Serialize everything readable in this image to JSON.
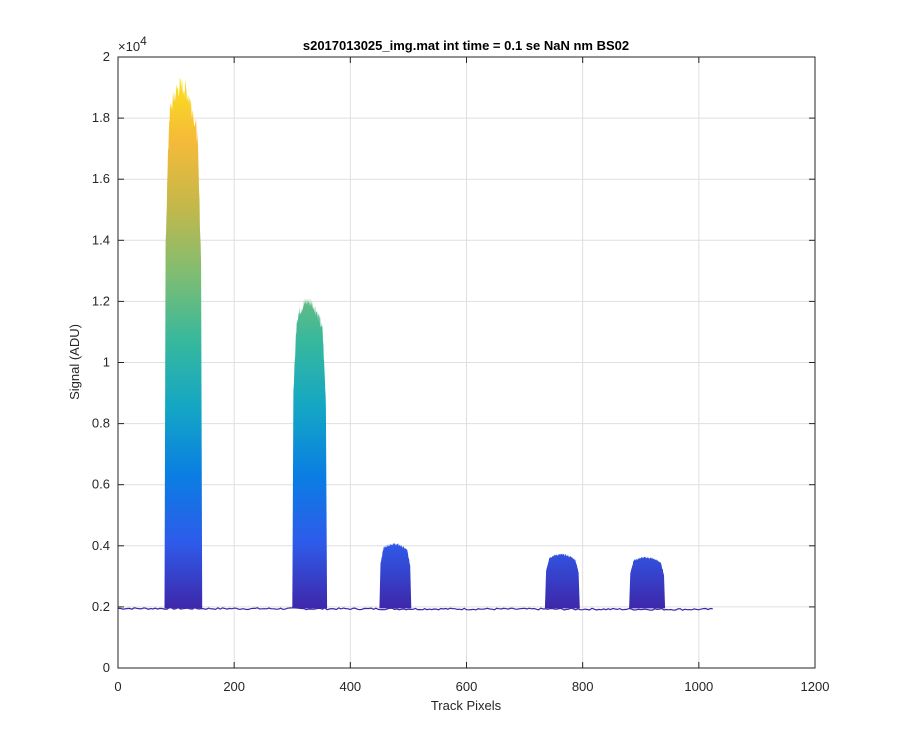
{
  "chart_data": {
    "type": "area",
    "title": "s2017013025_img.mat int time = 0.1 se  NaN nm BS02",
    "xlabel": "Track Pixels",
    "ylabel": "Signal (ADU)",
    "xlim": [
      0,
      1200
    ],
    "ylim": [
      0,
      20000
    ],
    "x_ticks": [
      0,
      200,
      400,
      600,
      800,
      1000,
      1200
    ],
    "x_tick_labels": [
      "0",
      "200",
      "400",
      "600",
      "800",
      "1000",
      "1200"
    ],
    "y_ticks": [
      0,
      2000,
      4000,
      6000,
      8000,
      10000,
      12000,
      14000,
      16000,
      18000,
      20000
    ],
    "y_tick_labels": [
      "0",
      "0.2",
      "0.4",
      "0.6",
      "0.8",
      "1",
      "1.2",
      "1.4",
      "1.6",
      "1.8",
      "2"
    ],
    "y_exponent_label": "×10",
    "y_exponent_power": "4",
    "grid": true,
    "baseline": 1950,
    "x_range": [
      0,
      1024
    ],
    "peaks": [
      {
        "x_start": 80,
        "x_end": 145,
        "peak": 19400
      },
      {
        "x_start": 300,
        "x_end": 360,
        "peak": 12200
      },
      {
        "x_start": 450,
        "x_end": 505,
        "peak": 4100
      },
      {
        "x_start": 735,
        "x_end": 795,
        "peak": 3750
      },
      {
        "x_start": 880,
        "x_end": 942,
        "peak": 3650
      }
    ],
    "colormap": [
      "#3e26a8",
      "#2e5bea",
      "#0a7ee3",
      "#13a6c5",
      "#37b89d",
      "#7fbd72",
      "#c4b84a",
      "#f6ba39",
      "#f9e51b"
    ]
  }
}
